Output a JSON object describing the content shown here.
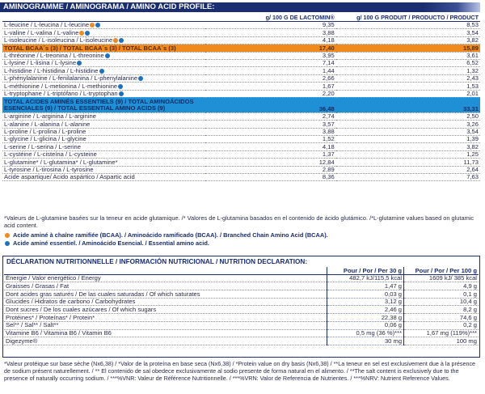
{
  "header": {
    "title": "AMINOGRAMME / AMINOGRAMA / AMINO ACID PROFILE:"
  },
  "columns": {
    "c2": "g/ 100 G DE LACTOMIN®",
    "c3": "g/ 100 G PRODUIT / PRODUCTO / PRODUCT"
  },
  "rows": [
    {
      "label": "L-leucine / L-leucina / L-leucine",
      "v1": "9,35",
      "v2": "8,53",
      "dots": [
        "orange",
        "blue"
      ]
    },
    {
      "label": "L-valine / L-valina / L-valine",
      "v1": "3,88",
      "v2": "3,54",
      "dots": [
        "orange",
        "blue"
      ]
    },
    {
      "label": "L-isoleucine / L-isoleucina / L-isoleucine",
      "v1": "4,18",
      "v2": "3,82",
      "dots": [
        "orange",
        "blue"
      ]
    },
    {
      "label": "TOTAL BCAA´s (3) / TOTAL BCAA´s (3) / TOTAL BCAA´s (3)",
      "v1": "17,40",
      "v2": "15,89",
      "style": "orange"
    },
    {
      "label": "L-thréonine / L-treonina / L-threonine",
      "v1": "3,95",
      "v2": "3,61",
      "dots": [
        "blue"
      ]
    },
    {
      "label": "L-lysine / L-lisina / L-lysine",
      "v1": "7,14",
      "v2": "6,52",
      "dots": [
        "blue"
      ]
    },
    {
      "label": "L-histidine / L-histidina / L-histidine",
      "v1": "1,44",
      "v2": "1,32",
      "dots": [
        "blue"
      ]
    },
    {
      "label": "L-phénylalanine / L-fenilalanina / L-phenylalanine",
      "v1": "2,66",
      "v2": "2,43",
      "dots": [
        "blue"
      ]
    },
    {
      "label": "L-méthionine / L-metionina / L-methionine",
      "v1": "1,67",
      "v2": "1,53",
      "dots": [
        "blue"
      ]
    },
    {
      "label": "L-tryptophane / L-triptófano / L-tryptophan",
      "v1": "2,20",
      "v2": "2,01",
      "dots": [
        "blue"
      ]
    },
    {
      "label": "TOTAL ACIDES AMINÉS ESSENTIELS (9) / TOTAL AMINOÁCIDOS ESENCIALES (9) / TOTAL ESSENTIAL AMINO ACIDS (9)",
      "v1": "36,48",
      "v2": "33,31",
      "style": "blue"
    },
    {
      "label": "L-arginine / L-arginina / L-arginine",
      "v1": "2,74",
      "v2": "2,50"
    },
    {
      "label": "L-alanine / L-alanina / L-alanine",
      "v1": "3,57",
      "v2": "3,26"
    },
    {
      "label": "L-proline / L-prolina / L-proline",
      "v1": "3,88",
      "v2": "3,54"
    },
    {
      "label": "L-glycine / L-glicina / L-glycine",
      "v1": "1,52",
      "v2": "1,39"
    },
    {
      "label": "L-serine / L-serina / L-serine",
      "v1": "4,18",
      "v2": "3,82"
    },
    {
      "label": "L-cystéine / L-cisteína / L-cysteine",
      "v1": "1,37",
      "v2": "1,25"
    },
    {
      "label": "L-glutamine* / L-glutamina* / L-glutamine*",
      "v1": "12,84",
      "v2": "11,73"
    },
    {
      "label": "L-tyrosine / L-tirosina / L-tyrosine",
      "v1": "2,89",
      "v2": "2,64"
    },
    {
      "label": "Acide aspartique/ Acido aspártico / Aspartic acid",
      "v1": "8,36",
      "v2": "7,63"
    }
  ],
  "footnote": "*Valeurs de L-glutamine basées sur la teneur en acide glutamique. /* Valores de L-glutamina basados en el contenido de ácido glutámico. /*L-glutamine values based on glutamic acid content.",
  "legend": {
    "bcaa": "Acide aminé à chaîne ramifiée (BCAA). / Aminoácido ramificado (BCAA). / Branched Chain Amino Acid (BCAA).",
    "essential": "Acide aminé essentiel. / Aminoácido Esencial. / Essential amino acid."
  },
  "nutrition": {
    "title": "DÉCLARATION NUTRITIONNELLE / INFORMACIÓN NUTRICIONAL / NUTRITION DECLARATION:",
    "head": {
      "h1": "Pour / Por / Per 30 g",
      "h2": "Pour / Por / Per 100 g"
    },
    "rows": [
      {
        "label": "Énergie / Valor energético / Energy",
        "a": "482,7 kJ/115,5 kcal",
        "b": "1609 kJ/ 385 kcal"
      },
      {
        "label": "Graisses / Grasas / Fat",
        "a": "1,47 g",
        "b": "4,9 g"
      },
      {
        "label": "Dont acides gras saturés / De las cuales saturadas / Of which saturates",
        "a": "0,03 g",
        "b": "0,1 g"
      },
      {
        "label": "Glucides / Hidratos de carbono / Carbohydrates",
        "a": "3,12 g",
        "b": "10,4 g"
      },
      {
        "label": "Dont sucres / De los cuales azúcares / Of which sugars",
        "a": "2,46 g",
        "b": "8,2 g"
      },
      {
        "label": "Protéines* / Proteínas* / Protein*",
        "a": "22,38 g",
        "b": "74,6 g"
      },
      {
        "label": "Sel** / Sal** / Salt**",
        "a": "0,06 g",
        "b": "0,2 g"
      },
      {
        "label": "Vitamine B6 / Vitamina B6 / Vitamin B6",
        "a": "0,5 mg (36 %)***",
        "b": "1,67 mg (119%)***"
      },
      {
        "label": "Digezyme®",
        "a": "30 mg",
        "b": "100 mg"
      }
    ],
    "bottom": "*Valeur protéique sur base sèche (Nx6,38) / *Valor de la proteína en base seca (Nx6,38) / *Protein value on dry basis (Nx6,38) / **La teneur en sel est exclusivement due à la présence de sodium présent naturellement. / ** El contenido de sal obedece exclusivamente al sodio presente de forma natural en el alimento. / **The salt content is exclusively due to the presence of naturally occurring sodium. / ***%VNR: Valeur de Référence Nutritionnelle. / ***%VRN: Valor de Referencia de Nutrientes. / ***%NRV: Nutrient Reference Values."
  },
  "colors": {
    "navy": "#1a2d70",
    "orange": "#f08a1c",
    "blue": "#1f8fd6"
  }
}
